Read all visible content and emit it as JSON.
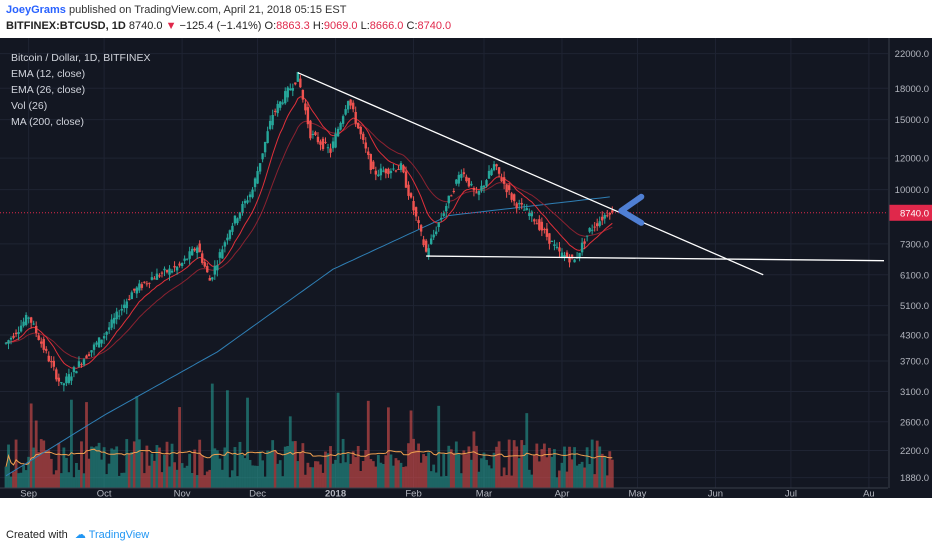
{
  "header": {
    "author": "JoeyGrams",
    "published_text": "published on TradingView.com, April 21, 2018 05:15 EST",
    "symbol": "BITFINEX:BTCUSD, 1D",
    "last": "8740.0",
    "change_arrow": "▼",
    "change": "−125.4 (−1.41%)",
    "o_label": "O:",
    "o_value": "8863.3",
    "h_label": "H:",
    "h_value": "9069.0",
    "l_label": "L:",
    "l_value": "8666.0",
    "c_label": "C:",
    "c_value": "8740.0"
  },
  "legend": {
    "title": "Bitcoin / Dollar, 1D, BITFINEX",
    "ema12": "EMA (12, close)",
    "ema26": "EMA (26, close)",
    "vol": "Vol (26)",
    "ma200": "MA (200, close)"
  },
  "footer": {
    "created_with": "Created with",
    "brand": "TradingView"
  },
  "colors": {
    "up": "#26a69a",
    "down": "#ef5350",
    "ema12": "#e0303a",
    "ema26": "#8a2230",
    "ma200": "#2f7fb5",
    "vol_ma": "#f0a050",
    "trendline": "#ffffff",
    "price_label": "#e0284b",
    "arrow": "#4f7fd4",
    "background": "#131722"
  },
  "chart_data": {
    "type": "candlestick",
    "scale": "log",
    "ylim": [
      1750,
      23000
    ],
    "y_ticks": [
      "22000.0",
      "18000.0",
      "15000.0",
      "12000.0",
      "10000.0",
      "7300.0",
      "6100.0",
      "5100.0",
      "4300.0",
      "3700.0",
      "3100.0",
      "2600.0",
      "2200.0",
      "1880.0"
    ],
    "x_ticks": [
      "Sep",
      "Oct",
      "Nov",
      "Dec",
      "2018",
      "Feb",
      "Mar",
      "Apr",
      "May",
      "Jun",
      "Jul",
      "Au"
    ],
    "x_range": [
      "2017-08-23",
      "2018-08-07"
    ],
    "last_price": 8740.0,
    "price_label": "8740.0",
    "trendlines": [
      {
        "name": "descending resistance",
        "from": [
          "2017-12-17",
          19700
        ],
        "to": [
          "2018-06-20",
          6100
        ]
      },
      {
        "name": "horizontal support",
        "from": [
          "2018-02-06",
          6800
        ],
        "to": [
          "2018-08-07",
          6620
        ]
      }
    ],
    "anchors": [
      [
        "2017-08-23",
        4100
      ],
      [
        "2017-09-01",
        4800
      ],
      [
        "2017-09-14",
        3200
      ],
      [
        "2017-09-22",
        3700
      ],
      [
        "2017-10-01",
        4300
      ],
      [
        "2017-10-12",
        5500
      ],
      [
        "2017-10-20",
        6000
      ],
      [
        "2017-10-31",
        6400
      ],
      [
        "2017-11-07",
        7200
      ],
      [
        "2017-11-12",
        5900
      ],
      [
        "2017-11-20",
        8000
      ],
      [
        "2017-11-29",
        10000
      ],
      [
        "2017-12-07",
        15500
      ],
      [
        "2017-12-17",
        19300
      ],
      [
        "2017-12-22",
        13800
      ],
      [
        "2017-12-30",
        12500
      ],
      [
        "2018-01-06",
        17000
      ],
      [
        "2018-01-16",
        11000
      ],
      [
        "2018-01-27",
        11400
      ],
      [
        "2018-02-06",
        6950
      ],
      [
        "2018-02-20",
        11200
      ],
      [
        "2018-02-26",
        9600
      ],
      [
        "2018-03-05",
        11500
      ],
      [
        "2018-03-13",
        9300
      ],
      [
        "2018-03-20",
        8600
      ],
      [
        "2018-03-31",
        6900
      ],
      [
        "2018-04-06",
        6630
      ],
      [
        "2018-04-12",
        7900
      ],
      [
        "2018-04-20",
        8865
      ],
      [
        "2018-04-21",
        8740
      ]
    ],
    "last_candle": {
      "open": 8863.3,
      "high": 9069.0,
      "low": 8666.0,
      "close": 8740.0
    },
    "ma200_anchors": [
      [
        "2017-08-23",
        1900
      ],
      [
        "2017-10-01",
        2700
      ],
      [
        "2017-11-15",
        3900
      ],
      [
        "2017-12-31",
        6300
      ],
      [
        "2018-02-15",
        8600
      ],
      [
        "2018-04-21",
        9600
      ]
    ]
  }
}
